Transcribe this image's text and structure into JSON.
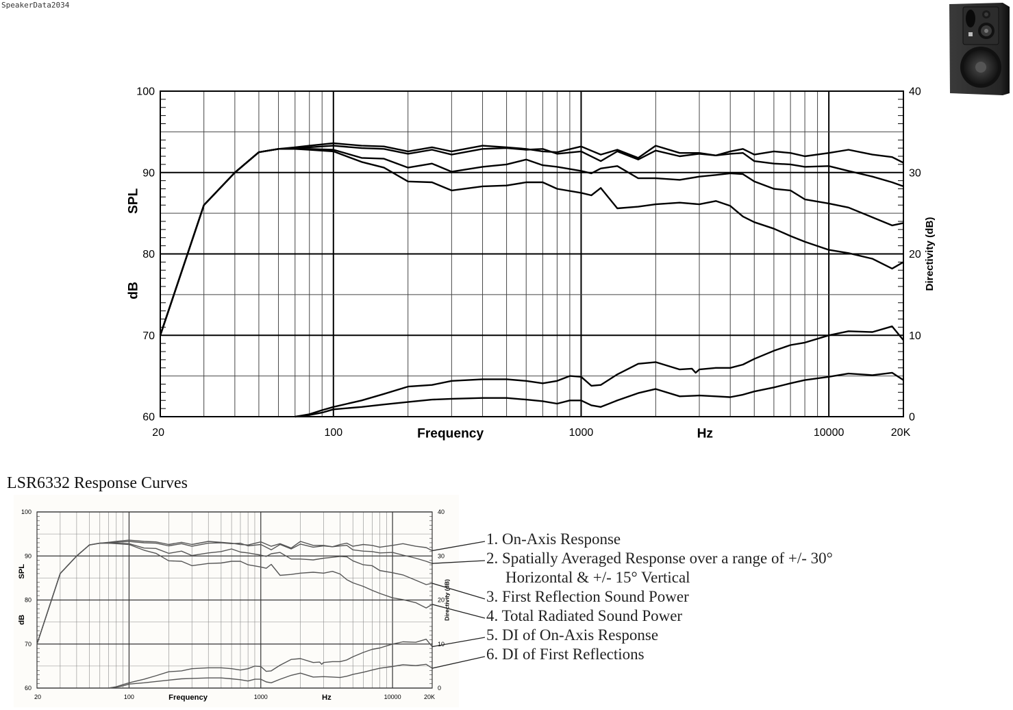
{
  "watermark": "SpeakerData2034",
  "product_image": {
    "name": "speaker-photo",
    "description": "black studio monitor with tweeter, midrange and woofer"
  },
  "caption": "LSR6332 Response Curves",
  "legend": {
    "items": [
      {
        "number": "1.",
        "label": "On-Axis Response"
      },
      {
        "number": "2.",
        "label": "Spatially Averaged Response over a range of +/- 30°",
        "label_cont": "Horizontal & +/- 15° Vertical"
      },
      {
        "number": "3.",
        "label": "First Reflection Sound Power"
      },
      {
        "number": "4.",
        "label": "Total Radiated Sound Power"
      },
      {
        "number": "5.",
        "label": "DI of On-Axis Response"
      },
      {
        "number": "6.",
        "label": "DI of First Reflections"
      }
    ]
  },
  "chart_data": [
    {
      "type": "line",
      "title": "",
      "xlabel": "Frequency",
      "xlabel2": "Hz",
      "ylabel": "SPL",
      "ylabel2": "dB",
      "y2label": "Directivity (dB)",
      "xscale": "log",
      "xlim": [
        20,
        20000
      ],
      "ylim": [
        60,
        100
      ],
      "y2lim": [
        0,
        40
      ],
      "x_ticks": [
        "20",
        "100",
        "1000",
        "10000",
        "20K"
      ],
      "x_tick_values": [
        20,
        100,
        1000,
        10000,
        20000
      ],
      "y_ticks": [
        "60",
        "70",
        "80",
        "90",
        "100"
      ],
      "y2_ticks": [
        "0",
        "10",
        "20",
        "30",
        "40"
      ],
      "grid": true,
      "series": [
        {
          "name": "On-Axis Response",
          "axis": "left",
          "x": [
            20,
            30,
            40,
            50,
            60,
            70,
            80,
            100,
            130,
            160,
            200,
            250,
            300,
            400,
            500,
            600,
            700,
            800,
            1000,
            1200,
            1400,
            1700,
            2000,
            2500,
            3000,
            3500,
            4000,
            4500,
            5000,
            6000,
            7000,
            8000,
            10000,
            12000,
            15000,
            18000,
            20000
          ],
          "y": [
            70,
            86,
            90,
            92.5,
            92.9,
            93.1,
            93.3,
            93.6,
            93.3,
            93.2,
            92.6,
            93.1,
            92.6,
            93.3,
            93.1,
            92.9,
            92.6,
            92.5,
            93.2,
            92.2,
            92.8,
            91.8,
            93.3,
            92.4,
            92.4,
            92.1,
            92.6,
            92.9,
            92.2,
            92.6,
            92.4,
            92.0,
            92.4,
            92.8,
            92.2,
            91.9,
            91.2
          ]
        },
        {
          "name": "Spatially Averaged Response",
          "axis": "left",
          "x": [
            20,
            30,
            40,
            50,
            60,
            70,
            80,
            100,
            130,
            160,
            200,
            250,
            300,
            400,
            500,
            600,
            700,
            800,
            1000,
            1200,
            1400,
            1700,
            2000,
            2500,
            3000,
            3500,
            4000,
            4500,
            5000,
            6000,
            7000,
            8000,
            10000,
            12000,
            15000,
            18000,
            20000
          ],
          "y": [
            70,
            86,
            90,
            92.5,
            92.9,
            93.0,
            93.1,
            93.3,
            93.0,
            92.9,
            92.3,
            92.8,
            92.2,
            92.9,
            93.0,
            92.8,
            92.9,
            92.3,
            92.6,
            91.4,
            92.6,
            91.6,
            92.7,
            92.0,
            92.3,
            92.1,
            92.3,
            92.4,
            91.4,
            91.1,
            91.0,
            90.7,
            90.8,
            90.2,
            89.5,
            88.8,
            88.3
          ]
        },
        {
          "name": "First Reflection Sound Power",
          "axis": "left",
          "x": [
            20,
            30,
            40,
            50,
            60,
            70,
            80,
            100,
            130,
            160,
            200,
            250,
            300,
            400,
            500,
            600,
            700,
            800,
            1000,
            1100,
            1200,
            1400,
            1700,
            2000,
            2500,
            3000,
            3500,
            4000,
            4500,
            5000,
            6000,
            7000,
            8000,
            10000,
            12000,
            15000,
            18000,
            20000
          ],
          "y": [
            70,
            86,
            90,
            92.5,
            92.9,
            92.9,
            92.9,
            92.8,
            91.8,
            91.7,
            90.6,
            91.1,
            90.1,
            90.7,
            91.0,
            91.6,
            90.9,
            90.7,
            90.2,
            89.9,
            90.5,
            90.8,
            89.3,
            89.3,
            89.1,
            89.5,
            89.7,
            89.9,
            89.8,
            88.9,
            88.0,
            87.8,
            86.7,
            86.2,
            85.7,
            84.5,
            83.5,
            83.8
          ]
        },
        {
          "name": "Total Radiated Sound Power",
          "axis": "left",
          "x": [
            20,
            30,
            40,
            50,
            60,
            70,
            80,
            100,
            130,
            160,
            200,
            250,
            300,
            400,
            500,
            600,
            700,
            800,
            1000,
            1100,
            1200,
            1400,
            1700,
            2000,
            2500,
            3000,
            3500,
            4000,
            4500,
            5000,
            6000,
            7000,
            8000,
            10000,
            12000,
            15000,
            18000,
            20000
          ],
          "y": [
            70,
            86,
            90,
            92.5,
            92.9,
            92.9,
            92.8,
            92.6,
            91.3,
            90.6,
            88.9,
            88.8,
            87.8,
            88.3,
            88.4,
            88.8,
            88.8,
            88.0,
            87.5,
            87.2,
            88.1,
            85.6,
            85.8,
            86.1,
            86.3,
            86.1,
            86.5,
            85.9,
            84.6,
            83.9,
            83.1,
            82.2,
            81.5,
            80.5,
            80.1,
            79.4,
            78.2,
            79.0
          ]
        },
        {
          "name": "DI of On-Axis Response",
          "axis": "right",
          "x": [
            70,
            80,
            90,
            100,
            130,
            160,
            200,
            250,
            300,
            400,
            500,
            600,
            700,
            800,
            900,
            1000,
            1100,
            1200,
            1400,
            1700,
            2000,
            2500,
            2800,
            2900,
            3000,
            3500,
            4000,
            4500,
            5000,
            6000,
            7000,
            8000,
            10000,
            12000,
            15000,
            18000,
            20000
          ],
          "y": [
            0,
            0.3,
            0.8,
            1.2,
            2.0,
            2.8,
            3.7,
            3.9,
            4.4,
            4.6,
            4.6,
            4.4,
            4.1,
            4.4,
            5.0,
            4.9,
            3.8,
            3.9,
            5.2,
            6.5,
            6.7,
            5.8,
            5.9,
            5.4,
            5.8,
            6.0,
            6.0,
            6.4,
            7.1,
            8.1,
            8.8,
            9.1,
            10.0,
            10.5,
            10.4,
            11.1,
            9.4
          ]
        },
        {
          "name": "DI of First Reflections",
          "axis": "right",
          "x": [
            70,
            80,
            90,
            100,
            130,
            160,
            200,
            250,
            300,
            400,
            500,
            600,
            700,
            800,
            900,
            1000,
            1100,
            1200,
            1400,
            1700,
            2000,
            2500,
            3000,
            3500,
            4000,
            4500,
            5000,
            6000,
            7000,
            8000,
            10000,
            12000,
            15000,
            18000,
            20000
          ],
          "y": [
            0,
            0.2,
            0.5,
            0.9,
            1.2,
            1.5,
            1.8,
            2.1,
            2.2,
            2.3,
            2.3,
            2.1,
            1.9,
            1.6,
            2.0,
            2.0,
            1.4,
            1.2,
            2.0,
            2.9,
            3.4,
            2.5,
            2.6,
            2.5,
            2.4,
            2.7,
            3.1,
            3.6,
            4.1,
            4.5,
            4.9,
            5.3,
            5.1,
            5.4,
            4.5
          ]
        }
      ]
    },
    {
      "type": "line",
      "title": "LSR6332 Response Curves (thumbnail reproduction)",
      "xlabel": "Frequency",
      "xlabel2": "Hz",
      "ylabel": "SPL",
      "ylabel2": "dB",
      "y2label": "Directivity (dB)",
      "xscale": "log",
      "xlim": [
        20,
        20000
      ],
      "ylim": [
        60,
        100
      ],
      "y2lim": [
        0,
        40
      ],
      "x_ticks": [
        "20",
        "100",
        "1000",
        "10000",
        "20K"
      ],
      "y_ticks": [
        "60",
        "70",
        "80",
        "90",
        "100"
      ],
      "y2_ticks": [
        "0",
        "10",
        "20",
        "30",
        "40"
      ],
      "grid": true,
      "note": "Same six series as main chart, with numbered leader lines to legend"
    }
  ],
  "colors": {
    "curve": "#000000",
    "grid_major": "#000000",
    "grid_minor": "#444444",
    "thumb_curve": "#555555"
  }
}
